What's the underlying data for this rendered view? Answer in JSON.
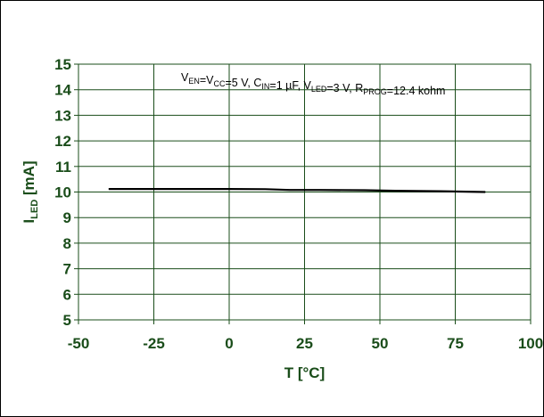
{
  "chart_data": {
    "type": "line",
    "title": "",
    "xlabel": "T [°C]",
    "ylabel_main": "I",
    "ylabel_sub": "LED",
    "ylabel_unit": " [mA]",
    "xlim": [
      -50,
      100
    ],
    "ylim": [
      5,
      15
    ],
    "xticks": [
      -50,
      -25,
      0,
      25,
      50,
      75,
      100
    ],
    "yticks": [
      5,
      6,
      7,
      8,
      9,
      10,
      11,
      12,
      13,
      14,
      15
    ],
    "grid": true,
    "series": [
      {
        "x": [
          -40,
          -25,
          0,
          12,
          20,
          30,
          45,
          55,
          70,
          85
        ],
        "values": [
          10.12,
          10.12,
          10.12,
          10.11,
          10.08,
          10.08,
          10.07,
          10.05,
          10.03,
          10.0
        ]
      }
    ],
    "annotation": [
      {
        "text": "V",
        "sub": "EN"
      },
      {
        "text": "=V",
        "sub": "CC"
      },
      {
        "text": "=5 V, C",
        "sub": "IN"
      },
      {
        "text": "=1 µF, V",
        "sub": "LED"
      },
      {
        "text": "=3 V, R",
        "sub": "PROG"
      },
      {
        "text": "=12.4 kohm",
        "sub": ""
      }
    ]
  },
  "colors": {
    "line": "#000000",
    "grid": "#1a4d1a",
    "text": "#1a4d1a"
  }
}
